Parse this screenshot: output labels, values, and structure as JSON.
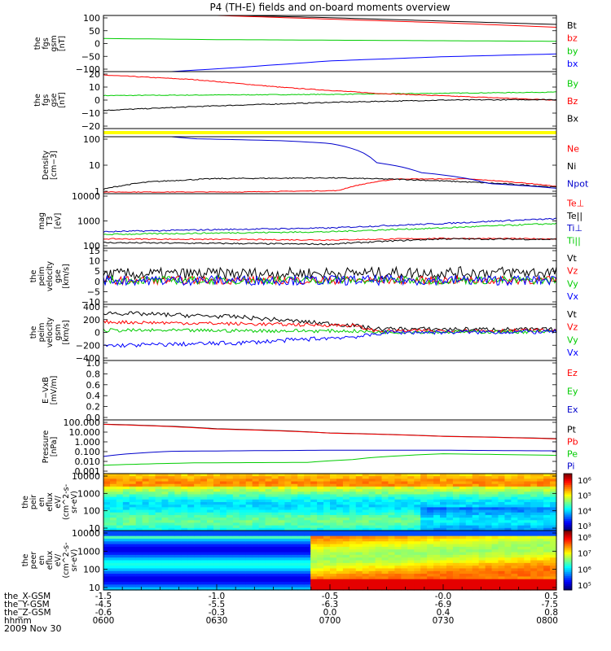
{
  "title": "P4 (TH-E) fields and on-board moments overview",
  "date_label": "2009 Nov 30",
  "chart_data": [
    {
      "type": "line",
      "ylabel": [
        "the",
        "fgs",
        "gsm",
        "[nT]"
      ],
      "ylim": [
        -100,
        100
      ],
      "yticks": [
        "100",
        "50",
        "0",
        "−50",
        "−100"
      ],
      "series": [
        {
          "name": "Bt",
          "color": "#000000",
          "x": [
            0,
            0.25,
            0.5,
            0.75,
            1
          ],
          "values": [
            110,
            102,
            92,
            80,
            68
          ],
          "noise": 0
        },
        {
          "name": "bz",
          "color": "#ff0000",
          "x": [
            0,
            0.25,
            0.5,
            0.75,
            1
          ],
          "values": [
            110,
            100,
            87,
            74,
            58
          ],
          "noise": 0
        },
        {
          "name": "by",
          "color": "#00cc00",
          "x": [
            0,
            0.25,
            0.5,
            0.75,
            1
          ],
          "values": [
            18,
            14,
            12,
            10,
            8
          ],
          "noise": 0
        },
        {
          "name": "bx",
          "color": "#0000ff",
          "x": [
            0.15,
            0.3,
            0.5,
            0.75,
            1
          ],
          "values": [
            -100,
            -85,
            -62,
            -47,
            -37
          ],
          "noise": 0
        }
      ]
    },
    {
      "type": "line",
      "ylabel": [
        "the",
        "fgs",
        "gse",
        "[nT]"
      ],
      "ylim": [
        -25,
        25
      ],
      "yticks": [
        "20",
        "10",
        "0",
        "−10",
        "−20"
      ],
      "series": [
        {
          "name": "By",
          "color": "#00cc00",
          "x": [
            0,
            0.25,
            0.5,
            0.75,
            1
          ],
          "values": [
            4,
            4.5,
            5,
            6,
            7
          ],
          "noise": 0.3
        },
        {
          "name": "Bz",
          "color": "#ff0000",
          "x": [
            0,
            0.2,
            0.4,
            0.6,
            0.8,
            1
          ],
          "values": [
            22,
            18,
            11,
            6,
            3,
            0
          ],
          "noise": 0.3
        },
        {
          "name": "Bx",
          "color": "#000000",
          "x": [
            0,
            0.25,
            0.5,
            0.75,
            1
          ],
          "values": [
            -9,
            -5,
            -2,
            0,
            0.5
          ],
          "noise": 0.4
        }
      ]
    },
    {
      "type": "bar",
      "ylabel": [],
      "series": [
        {
          "name": "",
          "color": "#ffff00"
        }
      ]
    },
    {
      "type": "line",
      "ylabel": [
        "Density",
        "[cm−3]"
      ],
      "yscale": "log",
      "ylim": [
        0.5,
        250
      ],
      "yticks": [
        "100",
        "10",
        "1"
      ],
      "series": [
        {
          "name": "Ne",
          "color": "#ff0000",
          "x": [
            0,
            0.3,
            0.52,
            0.58,
            0.65,
            0.8,
            1
          ],
          "values": [
            0.6,
            0.6,
            0.7,
            1.5,
            2.5,
            2.5,
            1.1
          ],
          "noise": 0.03
        },
        {
          "name": "Ni",
          "color": "#000000",
          "x": [
            0,
            0.1,
            0.25,
            0.5,
            0.65,
            0.8,
            1
          ],
          "values": [
            0.8,
            1.8,
            2.6,
            2.8,
            2.4,
            1.8,
            1.0
          ],
          "noise": 0.05
        },
        {
          "name": "Npot",
          "color": "#0000cc",
          "x": [
            0.15,
            0.2,
            0.4,
            0.5,
            0.6,
            0.7,
            0.85,
            1
          ],
          "values": [
            250,
            200,
            160,
            120,
            15,
            5,
            1.5,
            0.9
          ],
          "noise": 0
        }
      ]
    },
    {
      "type": "line",
      "ylabel": [
        "mag",
        "T3",
        "[eV]"
      ],
      "yscale": "log",
      "ylim": [
        100,
        10000
      ],
      "yticks": [
        "10000",
        "1000",
        "100"
      ],
      "series": [
        {
          "name": "Te⊥",
          "color": "#ff0000",
          "x": [
            0,
            0.25,
            0.5,
            0.75,
            1
          ],
          "values": [
            220,
            210,
            200,
            230,
            220
          ],
          "noise": 0.04
        },
        {
          "name": "Te||",
          "color": "#000000",
          "x": [
            0,
            0.25,
            0.5,
            0.75,
            1
          ],
          "values": [
            160,
            150,
            140,
            220,
            210
          ],
          "noise": 0.05
        },
        {
          "name": "Ti⊥",
          "color": "#0000cc",
          "x": [
            0,
            0.25,
            0.5,
            0.75,
            1
          ],
          "values": [
            400,
            480,
            550,
            800,
            1200
          ],
          "noise": 0.05
        },
        {
          "name": "Ti||",
          "color": "#00cc00",
          "x": [
            0,
            0.25,
            0.5,
            0.75,
            1
          ],
          "values": [
            320,
            360,
            400,
            550,
            800
          ],
          "noise": 0.05
        }
      ]
    },
    {
      "type": "line",
      "ylabel": [
        "the",
        "peim",
        "velocity",
        "gse",
        "[km/s]"
      ],
      "ylim": [
        -12,
        16
      ],
      "yticks": [
        "15",
        "10",
        "5",
        "0",
        "−5",
        "−10"
      ],
      "series": [
        {
          "name": "Vt",
          "color": "#000000",
          "x": [
            0,
            1
          ],
          "values": [
            3,
            4
          ],
          "noise": 3
        },
        {
          "name": "Vz",
          "color": "#ff0000",
          "x": [
            0,
            1
          ],
          "values": [
            0,
            0
          ],
          "noise": 2
        },
        {
          "name": "Vy",
          "color": "#00cc00",
          "x": [
            0,
            1
          ],
          "values": [
            0,
            0
          ],
          "noise": 2
        },
        {
          "name": "Vx",
          "color": "#0000ff",
          "x": [
            0,
            1
          ],
          "values": [
            0,
            0
          ],
          "noise": 2.5
        }
      ]
    },
    {
      "type": "line",
      "ylabel": [
        "the",
        "peim",
        "velocity",
        "gsm",
        "[km/s]"
      ],
      "ylim": [
        -400,
        400
      ],
      "yticks": [
        "400",
        "200",
        "0",
        "−200",
        "−400"
      ],
      "series": [
        {
          "name": "Vt",
          "color": "#000000",
          "x": [
            0,
            0.3,
            0.55,
            0.6,
            1
          ],
          "values": [
            280,
            220,
            100,
            50,
            40
          ],
          "noise": 30
        },
        {
          "name": "Vz",
          "color": "#ff0000",
          "x": [
            0,
            0.55,
            0.6,
            1
          ],
          "values": [
            150,
            100,
            20,
            30
          ],
          "noise": 25
        },
        {
          "name": "Vy",
          "color": "#00cc00",
          "x": [
            0,
            0.55,
            0.6,
            1
          ],
          "values": [
            30,
            20,
            5,
            10
          ],
          "noise": 25
        },
        {
          "name": "Vx",
          "color": "#0000ff",
          "x": [
            0,
            0.3,
            0.58,
            0.62,
            1
          ],
          "values": [
            -190,
            -150,
            -50,
            0,
            10
          ],
          "noise": 30
        }
      ]
    },
    {
      "type": "line",
      "ylabel": [
        "E−VxB",
        "[mV/m]"
      ],
      "ylim": [
        0,
        1
      ],
      "yticks": [
        "1.0",
        "0.8",
        "0.6",
        "0.4",
        "0.2",
        "0.0"
      ],
      "series": [
        {
          "name": "Ez",
          "color": "#ff0000",
          "x": [],
          "values": []
        },
        {
          "name": "Ey",
          "color": "#00cc00",
          "x": [],
          "values": []
        },
        {
          "name": "Ex",
          "color": "#0000cc",
          "x": [],
          "values": []
        }
      ]
    },
    {
      "type": "line",
      "ylabel": [
        "Pressure",
        "[nPa]"
      ],
      "yscale": "log",
      "ylim": [
        0.001,
        100
      ],
      "yticks": [
        "100.000",
        "10.000",
        "1.000",
        "0.100",
        "0.010",
        "0.001"
      ],
      "series": [
        {
          "name": "Pt",
          "color": "#000000",
          "x": [
            0,
            0.25,
            0.5,
            0.75,
            1
          ],
          "values": [
            40,
            15,
            6,
            3,
            1.8
          ],
          "noise": 0
        },
        {
          "name": "Pb",
          "color": "#ff0000",
          "x": [
            0,
            0.25,
            0.5,
            0.75,
            1
          ],
          "values": [
            38,
            14,
            5.8,
            2.9,
            1.7
          ],
          "noise": 0
        },
        {
          "name": "Pe",
          "color": "#00cc00",
          "x": [
            0,
            0.2,
            0.45,
            0.55,
            0.75,
            1
          ],
          "values": [
            0.006,
            0.01,
            0.011,
            0.02,
            0.07,
            0.05
          ],
          "noise": 0
        },
        {
          "name": "Pi",
          "color": "#0000cc",
          "x": [
            0,
            0.15,
            0.5,
            0.75,
            1
          ],
          "values": [
            0.04,
            0.12,
            0.15,
            0.15,
            0.13
          ],
          "noise": 0
        }
      ]
    },
    {
      "type": "heatmap",
      "ylabel": [
        "the",
        "peir",
        "en",
        "eflux",
        "eV/",
        "(cm^2-s-",
        "sr-eV)"
      ],
      "yscale": "log",
      "ylim": [
        8,
        20000
      ],
      "yticks": [
        "10000",
        "1000",
        "100",
        "10"
      ],
      "colorbar_ticks": [
        "10⁶",
        "10⁵",
        "10⁴",
        "10³"
      ]
    },
    {
      "type": "heatmap",
      "ylabel": [
        "the",
        "peer",
        "en",
        "eflux",
        "eV/",
        "(cm^2-s-",
        "sr-eV)"
      ],
      "yscale": "log",
      "ylim": [
        8,
        20000
      ],
      "yticks": [
        "10000",
        "1000",
        "100",
        "10"
      ],
      "colorbar_ticks": [
        "10⁸",
        "10⁷",
        "10⁶",
        "10⁵"
      ]
    }
  ],
  "x_axis": {
    "rows": [
      {
        "label": "the_X-GSM",
        "values": [
          "-1.5",
          "-1.0",
          "-0.5",
          "-0.0",
          "0.5"
        ]
      },
      {
        "label": "the_Y-GSM",
        "values": [
          "-4.5",
          "-5.5",
          "-6.3",
          "-6.9",
          "-7.5"
        ]
      },
      {
        "label": "the_Z-GSM",
        "values": [
          "-0.6",
          "-0.3",
          "0.0",
          "0.4",
          "0.8"
        ]
      },
      {
        "label": "hhmm",
        "values": [
          "0600",
          "0630",
          "0700",
          "0730",
          "0800"
        ]
      }
    ]
  }
}
